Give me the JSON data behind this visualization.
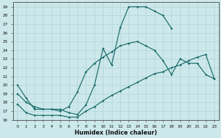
{
  "xlabel": "Humidex (Indice chaleur)",
  "bg_color": "#cce8ea",
  "grid_color": "#b8d8db",
  "line_color": "#1a6b6b",
  "xlim": [
    -0.5,
    23.5
  ],
  "ylim": [
    16,
    29.5
  ],
  "xticks": [
    0,
    1,
    2,
    3,
    4,
    5,
    6,
    7,
    8,
    9,
    10,
    11,
    12,
    13,
    14,
    15,
    16,
    17,
    18,
    19,
    20,
    21,
    22,
    23
  ],
  "yticks": [
    16,
    17,
    18,
    19,
    20,
    21,
    22,
    23,
    24,
    25,
    26,
    27,
    28,
    29
  ],
  "s1_x": [
    0,
    1,
    2,
    3,
    4,
    5,
    6,
    7,
    8,
    9,
    10,
    11,
    12,
    13,
    14,
    15,
    16,
    17,
    18
  ],
  "s1_y": [
    20.0,
    18.5,
    17.2,
    17.2,
    17.2,
    17.2,
    16.8,
    16.6,
    17.7,
    20.0,
    24.2,
    22.3,
    26.6,
    29.0,
    29.0,
    29.0,
    28.5,
    28.0,
    26.5
  ],
  "s2_x": [
    0,
    1,
    2,
    3,
    4,
    5,
    6,
    7,
    8,
    9,
    10,
    11,
    12,
    13,
    14,
    15,
    16,
    17,
    18,
    19,
    20,
    21,
    22,
    23
  ],
  "s2_y": [
    19.0,
    18.0,
    17.5,
    17.2,
    17.2,
    17.0,
    17.5,
    19.2,
    21.5,
    22.5,
    23.2,
    23.8,
    24.5,
    24.8,
    25.0,
    24.5,
    24.0,
    22.8,
    21.2,
    23.0,
    22.5,
    22.5,
    21.2,
    20.7
  ],
  "s3_x": [
    0,
    1,
    2,
    3,
    4,
    5,
    6,
    7,
    8,
    9,
    10,
    11,
    12,
    13,
    14,
    15,
    16,
    17,
    18,
    19,
    20,
    21,
    22,
    23
  ],
  "s3_y": [
    17.8,
    16.8,
    16.5,
    16.5,
    16.5,
    16.5,
    16.3,
    16.3,
    17.0,
    17.5,
    18.2,
    18.8,
    19.3,
    19.8,
    20.3,
    20.8,
    21.3,
    21.5,
    22.0,
    22.3,
    22.8,
    23.2,
    23.5,
    20.7
  ]
}
